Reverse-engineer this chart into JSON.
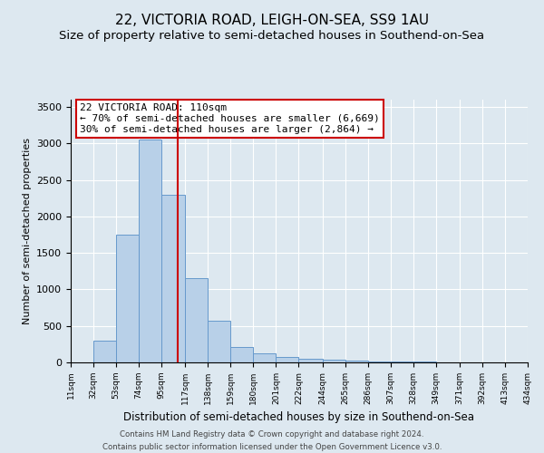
{
  "title": "22, VICTORIA ROAD, LEIGH-ON-SEA, SS9 1AU",
  "subtitle": "Size of property relative to semi-detached houses in Southend-on-Sea",
  "xlabel": "Distribution of semi-detached houses by size in Southend-on-Sea",
  "ylabel": "Number of semi-detached properties",
  "footer_line1": "Contains HM Land Registry data © Crown copyright and database right 2024.",
  "footer_line2": "Contains public sector information licensed under the Open Government Licence v3.0.",
  "annotation_title": "22 VICTORIA ROAD: 110sqm",
  "annotation_line1": "← 70% of semi-detached houses are smaller (6,669)",
  "annotation_line2": "30% of semi-detached houses are larger (2,864) →",
  "property_size": 110,
  "bar_edges": [
    11,
    32,
    53,
    74,
    95,
    117,
    138,
    159,
    180,
    201,
    222,
    244,
    265,
    286,
    307,
    328,
    349,
    371,
    392,
    413,
    434
  ],
  "bar_heights": [
    0,
    300,
    1750,
    3050,
    2300,
    1150,
    575,
    210,
    130,
    80,
    55,
    35,
    25,
    18,
    12,
    8,
    6,
    4,
    3,
    2
  ],
  "bar_color": "#b8d0e8",
  "bar_edge_color": "#6699cc",
  "vline_color": "#cc0000",
  "vline_x": 110,
  "annotation_box_color": "#ffffff",
  "annotation_box_edge_color": "#cc0000",
  "ylim": [
    0,
    3600
  ],
  "yticks": [
    0,
    500,
    1000,
    1500,
    2000,
    2500,
    3000,
    3500
  ],
  "background_color": "#dde8f0",
  "plot_background": "#dde8f0",
  "grid_color": "#ffffff",
  "title_fontsize": 11,
  "subtitle_fontsize": 9.5,
  "tick_labels": [
    "11sqm",
    "32sqm",
    "53sqm",
    "74sqm",
    "95sqm",
    "117sqm",
    "138sqm",
    "159sqm",
    "180sqm",
    "201sqm",
    "222sqm",
    "244sqm",
    "265sqm",
    "286sqm",
    "307sqm",
    "328sqm",
    "349sqm",
    "371sqm",
    "392sqm",
    "413sqm",
    "434sqm"
  ]
}
